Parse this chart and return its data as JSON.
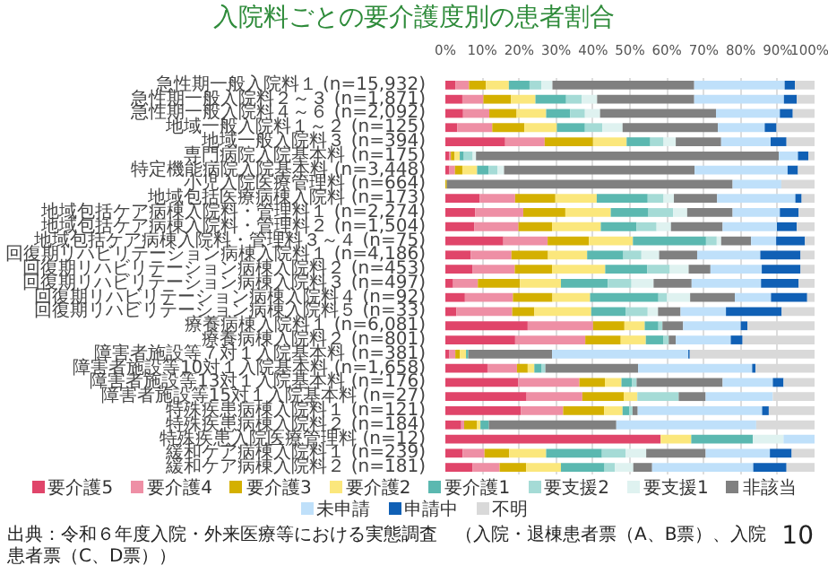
{
  "chart_data": {
    "type": "bar",
    "orientation": "horizontal",
    "stacked": true,
    "title": "入院料ごとの要介護度別の患者割合",
    "categories": [
      "急性期一般入院料１ (n=15,932)",
      "急性期一般入院料２～３ (n=1,871)",
      "急性期一般入院料４～６ (n=2,092)",
      "地域一般入院料１～２ (n=125)",
      "地域一般入院料３ (n=394)",
      "専門病院入院基本料 (n=175)",
      "特定機能病院入院基本料 (n=3,448)",
      "小児入院医療管理料 (n=664)",
      "地域包括医療病棟入院料 (n=173)",
      "地域包括ケア病棟入院料・管理料１ (n=2,274)",
      "地域包括ケア病棟入院料・管理料２ (n=1,504)",
      "地域包括ケア病棟入院料・管理料３～４ (n=75)",
      "回復期リハビリテーション病棟入院料１ (n=4,186)",
      "回復期リハビリテーション病棟入院料２ (n=453)",
      "回復期リハビリテーション病棟入院料３ (n=497)",
      "回復期リハビリテーション病棟入院料４ (n=92)",
      "回復期リハビリテーション病棟入院料５ (n=33)",
      "療養病棟入院料１ (n=6,081)",
      "療養病棟入院料２ (n=801)",
      "障害者施設等７対１入院基本料 (n=381)",
      "障害者施設等10対１入院基本料 (n=1,658)",
      "障害者施設等13対１入院基本料 (n=176)",
      "障害者施設等15対１入院基本料 (n=27)",
      "特殊疾患病棟入院料１ (n=121)",
      "特殊疾患病棟入院料２ (n=184)",
      "特殊疾患入院医療管理料 (n=12)",
      "緩和ケア病棟入院料１ (n=239)",
      "緩和ケア病棟入院料２ (n=181)"
    ],
    "series": [
      {
        "name": "要介護5",
        "color": "#e0456a",
        "values": [
          2.7,
          4.6,
          4.8,
          3.2,
          16.2,
          1.1,
          1.1,
          0,
          9.3,
          8.1,
          7.8,
          15.7,
          6.9,
          7.3,
          2.1,
          5.3,
          3.0,
          22.3,
          18.9,
          1.1,
          11.4,
          19.7,
          22.0,
          20.5,
          4.3,
          58.3,
          4.7,
          7.4
        ]
      },
      {
        "name": "要介護4",
        "color": "#ee8fa5",
        "values": [
          3.7,
          5.7,
          7.1,
          9.5,
          10.7,
          0.4,
          1.5,
          0,
          9.6,
          13.0,
          12.0,
          12.0,
          11.0,
          11.5,
          6.7,
          13.0,
          15.1,
          17.7,
          19.0,
          1.6,
          8.0,
          16.6,
          15.1,
          11.4,
          0.8,
          0,
          5.9,
          7.3
        ]
      },
      {
        "name": "要介護3",
        "color": "#d4b000",
        "values": [
          4.6,
          7.5,
          7.4,
          8.7,
          13.1,
          1.0,
          2.0,
          0.4,
          10.9,
          11.4,
          9.1,
          11.2,
          9.9,
          10.1,
          11.4,
          10.7,
          6.0,
          8.5,
          9.6,
          1.2,
          2.9,
          6.9,
          11.2,
          11.1,
          3.5,
          0,
          6.7,
          7.2
        ]
      },
      {
        "name": "要介護2",
        "color": "#fbe77c",
        "values": [
          6.2,
          6.6,
          8.0,
          8.8,
          9.1,
          1.4,
          4.0,
          0,
          11.2,
          12.3,
          13.2,
          11.9,
          10.6,
          14.4,
          11.1,
          10.2,
          15.4,
          5.5,
          6.8,
          1.7,
          1.8,
          4.5,
          3.7,
          5.0,
          0.9,
          8.3,
          10.0,
          9.4
        ]
      },
      {
        "name": "要介護1",
        "color": "#5bb8b0",
        "values": [
          5.6,
          8.3,
          6.5,
          7.6,
          6.4,
          1.1,
          3.1,
          0,
          13.8,
          10.2,
          9.7,
          19.8,
          9.8,
          11.4,
          12.7,
          18.5,
          9.3,
          3.7,
          4.8,
          0.6,
          2.0,
          2.9,
          0,
          1.8,
          2.3,
          16.7,
          15.1,
          11.8
        ]
      },
      {
        "name": "要支援2",
        "color": "#a5dbd6",
        "values": [
          3.2,
          4.2,
          4.0,
          4.7,
          3.6,
          2.4,
          2.4,
          0,
          4.3,
          6.7,
          5.4,
          2.9,
          4.9,
          6.1,
          6.4,
          2.3,
          6.0,
          1.1,
          1.4,
          0,
          1.0,
          1.2,
          11.2,
          0.9,
          0,
          0,
          6.4,
          2.8
        ]
      },
      {
        "name": "要支援1",
        "color": "#dff2f0",
        "values": [
          3.0,
          4.2,
          4.1,
          5.5,
          3.3,
          0.9,
          1.8,
          0,
          2.8,
          3.8,
          3.9,
          1.2,
          4.8,
          5.1,
          6.0,
          6.3,
          2.8,
          0,
          0,
          0,
          0,
          0,
          0,
          0,
          0,
          8.3,
          5.6,
          5.0
        ]
      },
      {
        "name": "非該当",
        "color": "#808080",
        "values": [
          38.4,
          26.3,
          31.4,
          25.8,
          12.3,
          82.0,
          51.6,
          77.4,
          11.7,
          12.3,
          14.0,
          8.1,
          10.3,
          5.9,
          10.3,
          12.1,
          6.1,
          5.6,
          1.9,
          22.7,
          25.1,
          23.3,
          7.3,
          1.4,
          34.5,
          0,
          16.1,
          5.1
        ]
      },
      {
        "name": "未申請",
        "color": "#bfe0fa",
        "values": [
          24.5,
          24.3,
          17.3,
          12.7,
          13.4,
          5.2,
          25.2,
          13.2,
          21.2,
          12.8,
          14.7,
          6.8,
          17.1,
          13.9,
          18.8,
          9.8,
          12.3,
          15.6,
          14.9,
          36.9,
          30.9,
          13.6,
          18.2,
          33.7,
          37.9,
          8.4,
          17.4,
          27.4
        ]
      },
      {
        "name": "申請中",
        "color": "#1060b5",
        "values": [
          2.8,
          3.5,
          3.5,
          3.2,
          4.3,
          2.8,
          2.8,
          0,
          1.7,
          5.1,
          5.4,
          7.8,
          10.9,
          10.5,
          10.2,
          9.8,
          15.1,
          1.8,
          3.2,
          0.4,
          0.9,
          2.9,
          0,
          1.8,
          0,
          0,
          5.9,
          9.0
        ]
      },
      {
        "name": "不明",
        "color": "#d9d9d9",
        "values": [
          5.3,
          4.8,
          5.9,
          10.3,
          7.6,
          1.7,
          4.5,
          9.0,
          3.5,
          4.3,
          4.8,
          2.6,
          3.8,
          3.8,
          4.3,
          2.0,
          8.9,
          18.2,
          19.5,
          33.8,
          16.0,
          8.4,
          11.3,
          12.4,
          15.8,
          0,
          6.2,
          7.6
        ]
      }
    ],
    "xlim": [
      0,
      100
    ],
    "xticks": [
      {
        "value": 0,
        "label": "0%"
      },
      {
        "value": 10,
        "label": "10%"
      },
      {
        "value": 20,
        "label": "20%"
      },
      {
        "value": 30,
        "label": "30%"
      },
      {
        "value": 40,
        "label": "40%"
      },
      {
        "value": 50,
        "label": "50%"
      },
      {
        "value": 60,
        "label": "60%"
      },
      {
        "value": 70,
        "label": "70%"
      },
      {
        "value": 80,
        "label": "80%"
      },
      {
        "value": 90,
        "label": "90%"
      },
      {
        "value": 100,
        "label": "100%"
      }
    ],
    "grid": "x",
    "legend": "bottom",
    "annotations": [
      "出典：令和６年度入院・外来医療等における実態調査　（入院・退棟患者票（A、B票）、入院患者票（C、D票））",
      "10"
    ]
  }
}
